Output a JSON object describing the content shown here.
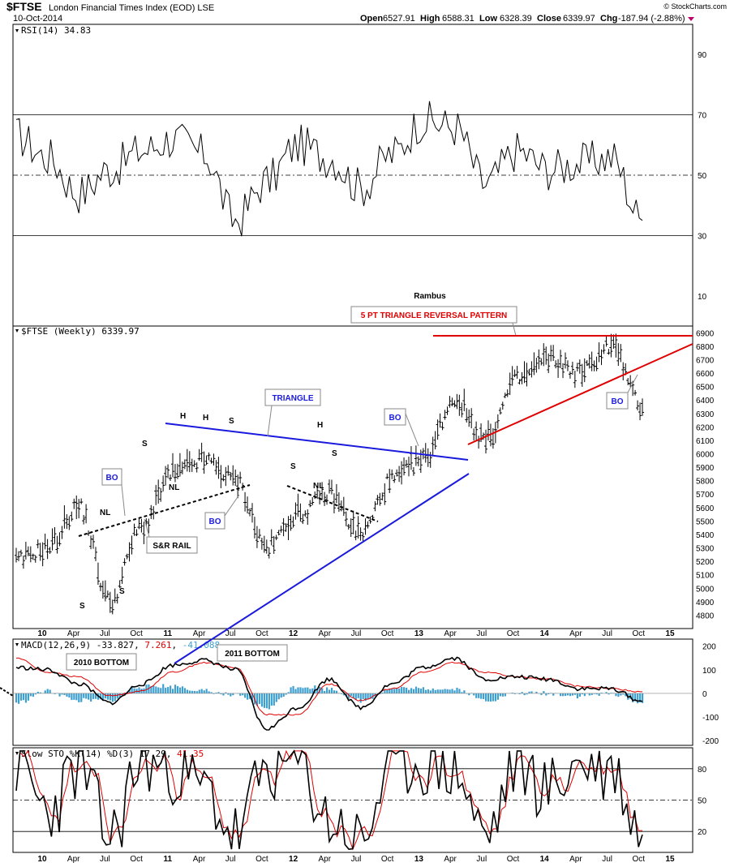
{
  "header": {
    "symbol": "$FTSE",
    "name": "London Financial Times Index (EOD)  LSE",
    "date": "10-Oct-2014",
    "open_label": "Open",
    "open": "6527.91",
    "high_label": "High",
    "high": "6588.31",
    "low_label": "Low",
    "low": "6328.39",
    "close_label": "Close",
    "close": "6339.97",
    "chg_label": "Chg",
    "chg": "-187.94 (-2.88%)",
    "copyright": "© StockCharts.com"
  },
  "colors": {
    "price_bar": "#000000",
    "triangle": "#1a1adc",
    "reversal": "#e00000",
    "macd_line": "#000000",
    "signal_line": "#e00000",
    "histogram": "#3fa0d0",
    "sto_k": "#000000",
    "sto_d": "#e00000",
    "grid": "#000000"
  },
  "chart_data": [
    {
      "type": "line",
      "panel": "rsi",
      "label": "RSI(14) 34.83",
      "ylim": [
        0,
        100
      ],
      "yticks": [
        10,
        30,
        50,
        70,
        90
      ],
      "reference_lines": [
        30,
        50,
        70
      ],
      "x": [
        "2009-10",
        "2010-01",
        "2010-04",
        "2010-07",
        "2010-10",
        "2011-01",
        "2011-04",
        "2011-07",
        "2011-10",
        "2012-01",
        "2012-04",
        "2012-07",
        "2012-10",
        "2013-01",
        "2013-04",
        "2013-07",
        "2013-10",
        "2014-01",
        "2014-04",
        "2014-07",
        "2014-10"
      ],
      "values": [
        63,
        56,
        44,
        52,
        58,
        62,
        57,
        35,
        48,
        60,
        56,
        46,
        57,
        68,
        66,
        47,
        58,
        52,
        54,
        56,
        35
      ],
      "last": 34.83
    },
    {
      "type": "ohlc",
      "panel": "price",
      "label": "$FTSE (Weekly) 6339.97",
      "ylim": [
        4700,
        6950
      ],
      "yticks": [
        4800,
        4900,
        5000,
        5100,
        5200,
        5300,
        5400,
        5500,
        5600,
        5700,
        5800,
        5900,
        6000,
        6100,
        6200,
        6300,
        6400,
        6500,
        6600,
        6700,
        6800,
        6900
      ],
      "x": [
        "2009-10",
        "2010-01",
        "2010-04",
        "2010-07",
        "2010-10",
        "2011-01",
        "2011-04",
        "2011-07",
        "2011-10",
        "2012-01",
        "2012-04",
        "2012-07",
        "2012-10",
        "2013-01",
        "2013-04",
        "2013-07",
        "2013-10",
        "2014-01",
        "2014-04",
        "2014-07",
        "2014-10"
      ],
      "values": [
        5200,
        5300,
        5600,
        4900,
        5450,
        5850,
        5950,
        5800,
        5300,
        5550,
        5700,
        5400,
        5800,
        5950,
        6400,
        6100,
        6550,
        6700,
        6600,
        6800,
        6340
      ],
      "annotations": {
        "title": "Rambus",
        "pattern_label": "5 PT TRIANGLE REVERSAL PATTERN",
        "triangle_label": "TRIANGLE",
        "sr_rail_label": "S&R RAIL",
        "bottom_2010": "2010 BOTTOM",
        "bottom_2011": "2011 BOTTOM",
        "bo": "BO",
        "nl": "NL",
        "h": "H",
        "s": "S"
      }
    },
    {
      "type": "line",
      "panel": "macd",
      "label": "MACD(12,26,9)",
      "macd_value": "-33.827",
      "signal_value": "7.261",
      "hist_value": "-41.088",
      "ylim": [
        -220,
        230
      ],
      "yticks": [
        -200,
        -100,
        0,
        100,
        200
      ],
      "x": [
        "2009-10",
        "2010-01",
        "2010-04",
        "2010-07",
        "2010-10",
        "2011-01",
        "2011-04",
        "2011-07",
        "2011-10",
        "2012-01",
        "2012-04",
        "2012-07",
        "2012-10",
        "2013-01",
        "2013-04",
        "2013-07",
        "2013-10",
        "2014-01",
        "2014-04",
        "2014-07",
        "2014-10"
      ],
      "series": [
        {
          "name": "MACD",
          "values": [
            110,
            100,
            40,
            -40,
            40,
            120,
            140,
            100,
            -150,
            -60,
            60,
            -60,
            40,
            110,
            150,
            60,
            70,
            60,
            20,
            20,
            -34
          ]
        },
        {
          "name": "Signal",
          "values": [
            150,
            90,
            70,
            -10,
            10,
            90,
            130,
            110,
            -90,
            -90,
            40,
            -30,
            20,
            90,
            130,
            90,
            70,
            60,
            30,
            20,
            7
          ]
        }
      ]
    },
    {
      "type": "line",
      "panel": "stochastic",
      "label": "Slow STO %K(14) %D(3)",
      "k_value": "17.29",
      "d_value": "41.35",
      "ylim": [
        0,
        100
      ],
      "yticks": [
        20,
        50,
        80
      ],
      "reference_lines": [
        20,
        50,
        80
      ],
      "x": [
        "2009-10",
        "2010-01",
        "2010-04",
        "2010-07",
        "2010-10",
        "2011-01",
        "2011-04",
        "2011-07",
        "2011-10",
        "2012-01",
        "2012-04",
        "2012-07",
        "2012-10",
        "2013-01",
        "2013-04",
        "2013-07",
        "2013-10",
        "2014-01",
        "2014-04",
        "2014-07",
        "2014-10"
      ],
      "series": [
        {
          "name": "%K",
          "values": [
            85,
            40,
            80,
            15,
            85,
            80,
            60,
            15,
            80,
            85,
            30,
            10,
            85,
            85,
            80,
            15,
            85,
            60,
            85,
            80,
            17
          ]
        },
        {
          "name": "%D",
          "values": [
            82,
            45,
            75,
            20,
            80,
            78,
            62,
            20,
            75,
            82,
            35,
            15,
            80,
            82,
            78,
            20,
            80,
            62,
            80,
            78,
            41
          ]
        }
      ]
    }
  ],
  "x_axis": {
    "labels": [
      "10",
      "Apr",
      "Jul",
      "Oct",
      "11",
      "Apr",
      "Jul",
      "Oct",
      "12",
      "Apr",
      "Jul",
      "Oct",
      "13",
      "Apr",
      "Jul",
      "Oct",
      "14",
      "Apr",
      "Jul",
      "Oct",
      "15"
    ]
  }
}
